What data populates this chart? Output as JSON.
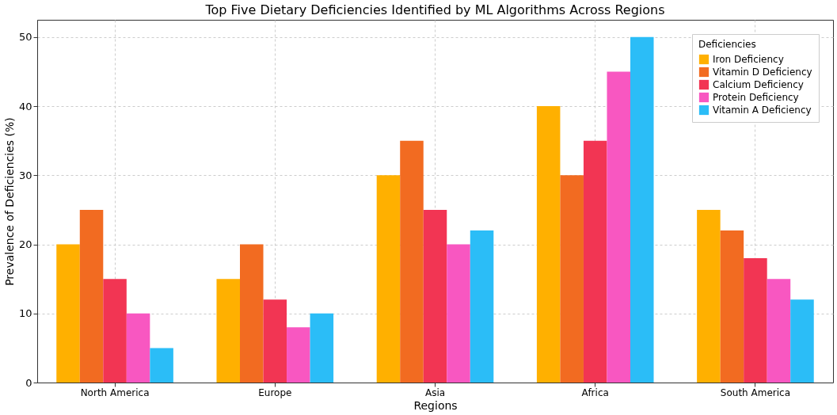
{
  "chart_data": {
    "type": "bar",
    "title": "Top Five Dietary Deficiencies Identified by ML Algorithms Across Regions",
    "xlabel": "Regions",
    "ylabel": "Prevalence of Deficiencies (%)",
    "legend_title": "Deficiencies",
    "categories": [
      "North America",
      "Europe",
      "Asia",
      "Africa",
      "South America"
    ],
    "series": [
      {
        "name": "Iron Deficiency",
        "color": "#ffb000",
        "values": [
          20,
          15,
          30,
          40,
          25
        ]
      },
      {
        "name": "Vitamin D Deficiency",
        "color": "#f26b21",
        "values": [
          25,
          20,
          35,
          30,
          22
        ]
      },
      {
        "name": "Calcium Deficiency",
        "color": "#f23553",
        "values": [
          15,
          12,
          25,
          35,
          18
        ]
      },
      {
        "name": "Protein Deficiency",
        "color": "#f857c1",
        "values": [
          10,
          8,
          20,
          45,
          15
        ]
      },
      {
        "name": "Vitamin A Deficiency",
        "color": "#2bbdf7",
        "values": [
          5,
          10,
          22,
          50,
          12
        ]
      }
    ],
    "ylim": [
      0,
      52.5
    ],
    "yticks": [
      0,
      10,
      20,
      30,
      40,
      50
    ],
    "grid": true,
    "legend": "top right"
  }
}
